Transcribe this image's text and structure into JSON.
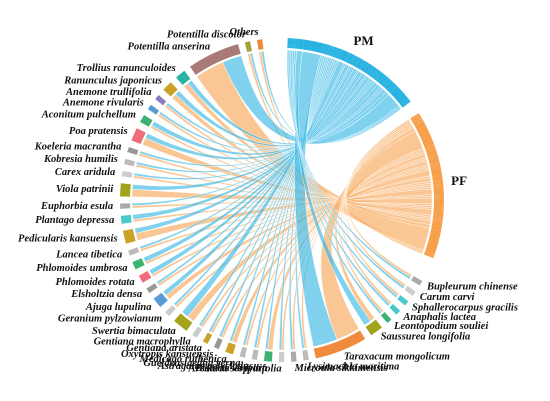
{
  "chart_data": {
    "type": "chord",
    "categories": [
      "Others",
      "Potentilla discolor",
      "Potentilla anserina",
      "Trollius ranunculoides",
      "Ranunculus japonicus",
      "Anemone trullifolia",
      "Anemone rivularis",
      "Aconitum pulchellum",
      "Poa pratensis",
      "Koeleria macrantha",
      "Kobresia humilis",
      "Carex aridula",
      "Viola patrinii",
      "Euphorbia esula",
      "Plantago depressa",
      "Pedicularis kansuensis",
      "Lancea tibetica",
      "Phlomoides umbrosa",
      "Phlomoides rotata",
      "Elsholtzia densa",
      "Ajuga lupulina",
      "Geranium pylzowianum",
      "Swertia bimaculata",
      "Gentiana macrophylla",
      "Gentiana aristata",
      "Oxytropis kansuensis",
      "Medicago ruthenica",
      "Gueldenstaedtia verna",
      "Astragalus polycladus",
      "Bistorta vivipara",
      "Arenaria serpyllifolia",
      "Microula sikkimensis",
      "Lysimachia maritima",
      "Taraxacum mongolicum",
      "Saussurea longifolia",
      "Leontopodium souliei",
      "Anaphalis lactea",
      "Sphallerocarpus gracilis",
      "Carum carvi",
      "Bupleurum chinense"
    ],
    "colors": [
      "#f08a3c",
      "#a6a336",
      "#a87a78",
      "#2bb3a3",
      "#c9a227",
      "#8e7cc3",
      "#5b9bd5",
      "#3cb371",
      "#f06c7a",
      "#999999",
      "#bbbbbb",
      "#cccccc",
      "#a3a31c",
      "#aaaaaa",
      "#48c9c9",
      "#c9a227",
      "#bbbbbb",
      "#3cb371",
      "#f06c7a",
      "#999999",
      "#5b9bd5",
      "#cccccc",
      "#a3a31c",
      "#cccccc",
      "#c9a227",
      "#999999",
      "#c9a227",
      "#bbbbbb",
      "#bbbbbb",
      "#3cb371",
      "#cccccc",
      "#aaaaaa",
      "#bbbbbb",
      "#f08a3c",
      "#a3a31c",
      "#3cb371",
      "#48c9c9",
      "#48c9c9",
      "#cccccc",
      "#aaaaaa"
    ],
    "series": [
      {
        "name": "PM",
        "color": "#29b3e3",
        "values": [
          0.5,
          0.5,
          4,
          1,
          1,
          0.5,
          0.5,
          1,
          1,
          0.5,
          0.5,
          0.5,
          1,
          0.5,
          1,
          1,
          0.5,
          1,
          1,
          0.5,
          1,
          0.5,
          1.5,
          0.5,
          0.5,
          0.5,
          0.5,
          0.5,
          0.5,
          0.5,
          0.5,
          0.5,
          0.5,
          5,
          1.5,
          0.5,
          0.5,
          0.5,
          0.5,
          0.5
        ]
      },
      {
        "name": "PF",
        "color": "#f7a04b",
        "values": [
          0.5,
          0.5,
          6,
          1,
          1,
          0.5,
          0.5,
          0.5,
          1.5,
          0.5,
          0.5,
          0.5,
          1.5,
          0.5,
          0.5,
          1.5,
          0.5,
          0.5,
          0.5,
          0.5,
          1,
          0.5,
          1.5,
          0.5,
          0.5,
          0.5,
          1,
          0.5,
          0.5,
          1,
          0.5,
          0.5,
          0.5,
          5,
          1,
          0.5,
          0.5,
          0.5,
          0.5,
          0.5
        ]
      }
    ]
  }
}
